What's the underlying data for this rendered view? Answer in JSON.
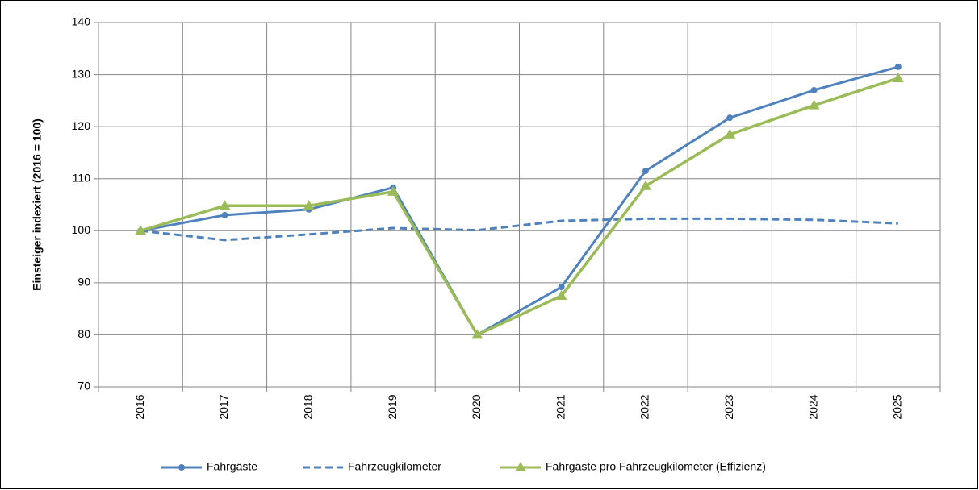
{
  "chart_data": {
    "type": "line",
    "y_label": "Einsteiger indexiert (2016 = 100)",
    "categories": [
      "2016",
      "2017",
      "2018",
      "2019",
      "2020",
      "2021",
      "2022",
      "2023",
      "2024",
      "2025"
    ],
    "series": [
      {
        "name": "Fahrgäste",
        "color": "#4f81bd",
        "marker": "circle",
        "dash": false,
        "values": [
          100,
          103.0,
          104.1,
          108.3,
          80,
          89.2,
          111.5,
          121.7,
          127.0,
          131.5
        ]
      },
      {
        "name": "Fahrzeugkilometer",
        "color": "#4f81bd",
        "marker": "none",
        "dash": true,
        "values": [
          100,
          98.2,
          99.3,
          100.5,
          100.1,
          101.9,
          102.3,
          102.3,
          102.1,
          101.4
        ]
      },
      {
        "name": "Fahrgäste pro Fahrzeugkilometer (Effizienz)",
        "color": "#9bbb59",
        "marker": "triangle",
        "dash": false,
        "values": [
          100,
          104.8,
          104.8,
          107.5,
          80,
          87.5,
          108.6,
          118.5,
          124.1,
          129.3
        ]
      }
    ],
    "ylim": [
      70,
      140
    ],
    "yticks": [
      70,
      80,
      90,
      100,
      110,
      120,
      130,
      140
    ],
    "grid": true,
    "legend": "bottom"
  }
}
